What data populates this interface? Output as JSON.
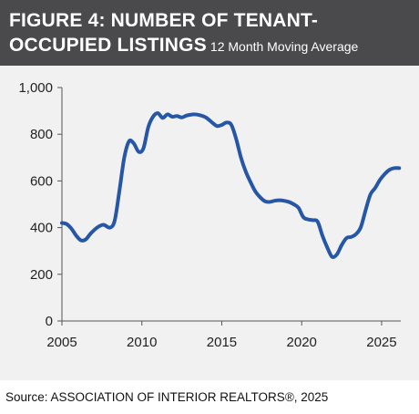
{
  "header": {
    "title_bold_line1": "FIGURE 4: NUMBER OF TENANT-",
    "title_bold_line2": "OCCUPIED LISTINGS",
    "subtitle": "12 Month Moving Average"
  },
  "source": "Source: ASSOCIATION OF INTERIOR REALTORS®, 2025",
  "colors": {
    "header_bg": "#4a4a4c",
    "plot_bg": "#f1f1f2",
    "line": "#2656a6"
  },
  "chart_data": {
    "type": "line",
    "title": "FIGURE 4: NUMBER OF TENANT-OCCUPIED LISTINGS",
    "subtitle": "12 Month Moving Average",
    "xlabel": "",
    "ylabel": "",
    "xlim": [
      2005,
      2026.2
    ],
    "ylim": [
      0,
      1000
    ],
    "xticks": [
      2005,
      2010,
      2015,
      2020,
      2025
    ],
    "yticks": [
      0,
      200,
      400,
      600,
      800,
      1000
    ],
    "ytick_labels": [
      "0",
      "200",
      "400",
      "600",
      "800",
      "1,000"
    ],
    "grid": false,
    "series": [
      {
        "x": [
          2005.0,
          2005.3,
          2005.6,
          2005.9,
          2006.2,
          2006.5,
          2006.8,
          2007.2,
          2007.6,
          2008.0,
          2008.3,
          2008.6,
          2008.9,
          2009.2,
          2009.5,
          2009.8,
          2010.1,
          2010.4,
          2010.7,
          2011.0,
          2011.3,
          2011.6,
          2011.9,
          2012.2,
          2012.5,
          2012.8,
          2013.2,
          2013.6,
          2014.0,
          2014.4,
          2014.7,
          2015.0,
          2015.3,
          2015.6,
          2015.9,
          2016.2,
          2016.5,
          2016.8,
          2017.1,
          2017.4,
          2017.7,
          2018.0,
          2018.3,
          2018.6,
          2018.9,
          2019.2,
          2019.5,
          2019.8,
          2020.1,
          2020.4,
          2020.7,
          2021.0,
          2021.3,
          2021.6,
          2021.9,
          2022.2,
          2022.5,
          2022.8,
          2023.1,
          2023.4,
          2023.7,
          2024.0,
          2024.3,
          2024.6,
          2024.9,
          2025.2,
          2025.5,
          2025.8,
          2026.1
        ],
        "values": [
          420,
          415,
          395,
          365,
          345,
          350,
          375,
          400,
          412,
          400,
          430,
          560,
          700,
          770,
          760,
          725,
          740,
          830,
          875,
          890,
          870,
          885,
          875,
          878,
          872,
          880,
          885,
          882,
          872,
          850,
          835,
          840,
          850,
          840,
          780,
          700,
          640,
          595,
          555,
          530,
          513,
          510,
          515,
          517,
          515,
          510,
          500,
          485,
          445,
          435,
          432,
          425,
          365,
          315,
          275,
          285,
          325,
          355,
          360,
          372,
          402,
          475,
          542,
          570,
          605,
          630,
          648,
          655,
          655
        ]
      }
    ]
  }
}
